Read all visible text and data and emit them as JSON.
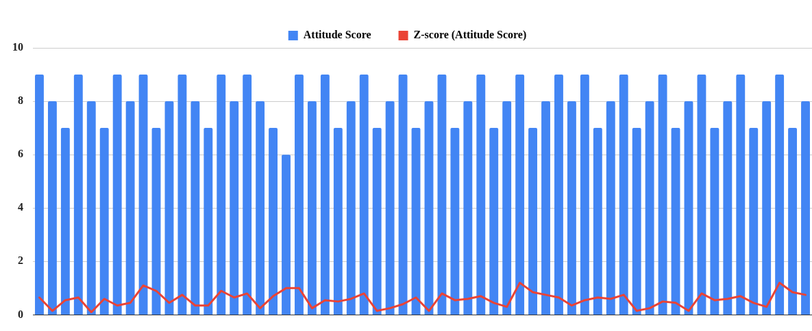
{
  "chart_data": {
    "type": "bar",
    "categories": [
      null,
      null,
      null,
      null,
      null,
      null,
      null,
      null,
      null,
      null,
      null,
      null,
      null,
      null,
      null,
      null,
      null,
      null,
      null,
      null,
      null,
      null,
      null,
      null,
      null,
      null,
      null,
      null,
      null,
      null,
      null,
      null,
      null,
      null,
      null,
      null,
      null,
      null,
      null,
      null,
      null,
      null,
      null,
      null,
      null,
      null,
      null,
      null,
      null,
      null,
      null,
      null,
      null,
      null,
      null,
      null,
      null,
      null,
      null,
      null
    ],
    "series": [
      {
        "name": "Attitude Score",
        "color": "#4285f4",
        "values": [
          9,
          8,
          7,
          9,
          8,
          7,
          9,
          8,
          9,
          7,
          8,
          9,
          8,
          7,
          9,
          8,
          9,
          8,
          7,
          6,
          9,
          8,
          9,
          7,
          8,
          9,
          7,
          8,
          9,
          7,
          8,
          9,
          7,
          8,
          9,
          7,
          8,
          9,
          7,
          8,
          9,
          8,
          9,
          7,
          8,
          9,
          7,
          8,
          9,
          7,
          8,
          9,
          7,
          8,
          9,
          7,
          8,
          9,
          7,
          8
        ]
      },
      {
        "name": "Z-score (Attitude Score)",
        "type": "line",
        "color": "#ea4335",
        "values": [
          0.65,
          0.15,
          0.55,
          0.65,
          0.1,
          0.6,
          0.35,
          0.45,
          1.1,
          0.9,
          0.45,
          0.75,
          0.35,
          0.35,
          0.9,
          0.65,
          0.8,
          0.25,
          0.7,
          1.0,
          1.0,
          0.25,
          0.55,
          0.5,
          0.6,
          0.8,
          0.15,
          0.25,
          0.4,
          0.65,
          0.15,
          0.8,
          0.55,
          0.6,
          0.7,
          0.45,
          0.3,
          1.2,
          0.85,
          0.75,
          0.65,
          0.35,
          0.55,
          0.65,
          0.6,
          0.75,
          0.15,
          0.25,
          0.5,
          0.45,
          0.15,
          0.8,
          0.55,
          0.6,
          0.7,
          0.45,
          0.3,
          1.2,
          0.85,
          0.75
        ]
      }
    ],
    "ylim": [
      0,
      10
    ],
    "yticks": [
      0,
      2,
      4,
      6,
      8,
      10
    ],
    "grid": "y",
    "legend": "top",
    "marker": "none",
    "line_style": "solid"
  }
}
